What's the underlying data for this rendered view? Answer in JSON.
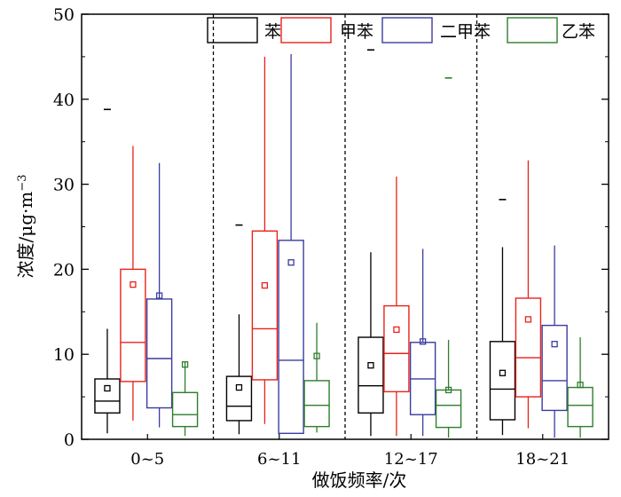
{
  "chart_data": {
    "type": "box",
    "title": "",
    "xlabel": "做饭频率/次",
    "ylabel_main": "浓度/μg·m",
    "ylabel_sup": "−3",
    "ylim": [
      0,
      50
    ],
    "yticks": [
      0,
      10,
      20,
      30,
      40,
      50
    ],
    "grid": false,
    "legend_position": "top-right",
    "categories": [
      "0~5",
      "6~11",
      "12~17",
      "18~21"
    ],
    "series": [
      {
        "name": "苯",
        "color": "#000000",
        "boxes": [
          {
            "min": 0.7,
            "q1": 3.1,
            "median": 4.5,
            "q3": 7.1,
            "max": 13.0,
            "mean": 6.0,
            "outlier": 38.8
          },
          {
            "min": 0.6,
            "q1": 2.2,
            "median": 3.9,
            "q3": 7.4,
            "max": 14.7,
            "mean": 6.1,
            "outlier": 25.2
          },
          {
            "min": 0.4,
            "q1": 3.1,
            "median": 6.3,
            "q3": 12.0,
            "max": 22.0,
            "mean": 8.7,
            "outlier": 45.8
          },
          {
            "min": 0.5,
            "q1": 2.3,
            "median": 5.9,
            "q3": 11.5,
            "max": 22.6,
            "mean": 7.8,
            "outlier": 28.2
          }
        ]
      },
      {
        "name": "甲苯",
        "color": "#e8221b",
        "boxes": [
          {
            "min": 2.2,
            "q1": 6.8,
            "median": 11.4,
            "q3": 20.0,
            "max": 34.5,
            "mean": 18.2
          },
          {
            "min": 1.8,
            "q1": 7.0,
            "median": 13.0,
            "q3": 24.5,
            "max": 45.0,
            "mean": 18.1
          },
          {
            "min": 0.4,
            "q1": 5.6,
            "median": 10.1,
            "q3": 15.7,
            "max": 30.9,
            "mean": 12.9
          },
          {
            "min": 1.3,
            "q1": 5.0,
            "median": 9.6,
            "q3": 16.6,
            "max": 32.8,
            "mean": 14.1
          }
        ]
      },
      {
        "name": "二甲苯",
        "color": "#3a3ca0",
        "boxes": [
          {
            "min": 1.4,
            "q1": 3.7,
            "median": 9.5,
            "q3": 16.5,
            "max": 32.5,
            "mean": 16.9
          },
          {
            "min": 0.7,
            "q1": 0.7,
            "median": 9.3,
            "q3": 23.4,
            "max": 45.3,
            "mean": 20.8
          },
          {
            "min": 0.4,
            "q1": 2.9,
            "median": 7.1,
            "q3": 11.4,
            "max": 22.4,
            "mean": 11.5
          },
          {
            "min": 0.2,
            "q1": 3.4,
            "median": 6.9,
            "q3": 13.4,
            "max": 22.8,
            "mean": 11.2
          }
        ]
      },
      {
        "name": "乙苯",
        "color": "#2e7d2e",
        "boxes": [
          {
            "min": 0.4,
            "q1": 1.5,
            "median": 2.9,
            "q3": 5.5,
            "max": 9.1,
            "mean": 8.8
          },
          {
            "min": 0.8,
            "q1": 1.5,
            "median": 4.0,
            "q3": 6.9,
            "max": 13.7,
            "mean": 9.8
          },
          {
            "min": 0.2,
            "q1": 1.4,
            "median": 4.0,
            "q3": 5.8,
            "max": 11.7,
            "mean": 5.8,
            "outlier": 42.5
          },
          {
            "min": 0.2,
            "q1": 1.5,
            "median": 4.0,
            "q3": 6.1,
            "max": 12.0,
            "mean": 6.4
          }
        ]
      }
    ]
  }
}
